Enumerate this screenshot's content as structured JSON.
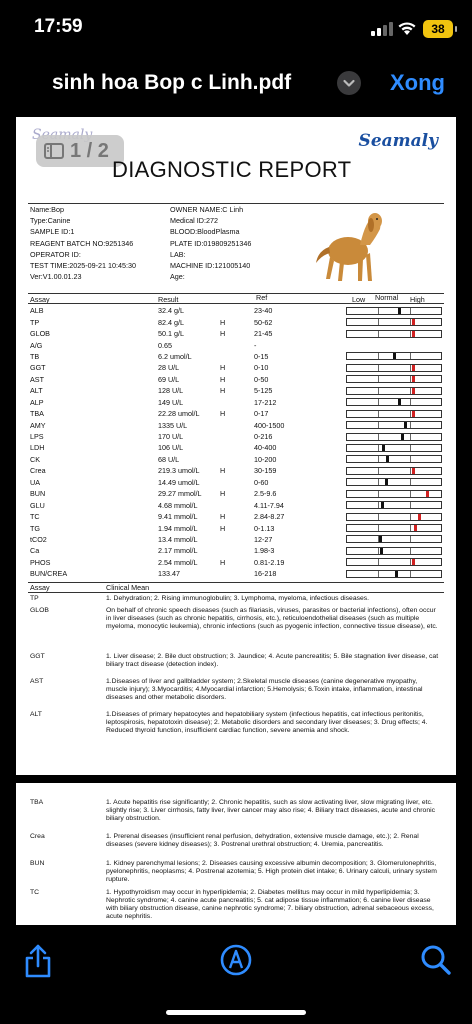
{
  "status": {
    "time": "17:59",
    "battery": "38"
  },
  "nav": {
    "title": "sinh hoa Bop c Linh.pdf",
    "done": "Xong"
  },
  "page_indicator": "1 / 2",
  "report": {
    "logo": "Seamaly",
    "title": "DIAGNOSTIC REPORT",
    "info_left": [
      "Name:Bop",
      "Type:Canine",
      "SAMPLE ID:1",
      "REAGENT BATCH NO:9251346",
      "OPERATOR ID:",
      "TEST TIME:2025-09-21 10:45:30",
      "Ver:V1.00.01.23"
    ],
    "info_right": [
      "OWNER NAME:C Linh",
      "Medical ID:272",
      "BLOOD:BloodPlasma",
      "PLATE ID:019809251346",
      "LAB:",
      "MACHINE ID:121005140",
      "Age:"
    ],
    "headers": {
      "assay": "Assay",
      "result": "Result",
      "ref": "Ref",
      "low": "Low",
      "normal": "Normal",
      "high": "High"
    },
    "rows": [
      {
        "assay": "ALB",
        "result": "32.4 g/L",
        "flag": "",
        "ref": "23-40",
        "pos": 0.55
      },
      {
        "assay": "TP",
        "result": "82.4 g/L",
        "flag": "H",
        "ref": "50-62",
        "pos": 0.7
      },
      {
        "assay": "GLOB",
        "result": "50.1 g/L",
        "flag": "H",
        "ref": "21-45",
        "pos": 0.7
      },
      {
        "assay": "A/G",
        "result": "0.65",
        "flag": "",
        "ref": "-",
        "pos": null
      },
      {
        "assay": "TB",
        "result": "6.2 umol/L",
        "flag": "",
        "ref": "0-15",
        "pos": 0.5
      },
      {
        "assay": "GGT",
        "result": "28 U/L",
        "flag": "H",
        "ref": "0-10",
        "pos": 0.7
      },
      {
        "assay": "AST",
        "result": "69 U/L",
        "flag": "H",
        "ref": "0-50",
        "pos": 0.7
      },
      {
        "assay": "ALT",
        "result": "128 U/L",
        "flag": "H",
        "ref": "5-125",
        "pos": 0.7
      },
      {
        "assay": "ALP",
        "result": "149 U/L",
        "flag": "",
        "ref": "17-212",
        "pos": 0.55
      },
      {
        "assay": "TBA",
        "result": "22.28 umol/L",
        "flag": "H",
        "ref": "0-17",
        "pos": 0.7
      },
      {
        "assay": "AMY",
        "result": "1335 U/L",
        "flag": "",
        "ref": "400-1500",
        "pos": 0.62
      },
      {
        "assay": "LPS",
        "result": "170 U/L",
        "flag": "",
        "ref": "0-216",
        "pos": 0.58
      },
      {
        "assay": "LDH",
        "result": "106 U/L",
        "flag": "",
        "ref": "40-400",
        "pos": 0.38
      },
      {
        "assay": "CK",
        "result": "68 U/L",
        "flag": "",
        "ref": "10-200",
        "pos": 0.43
      },
      {
        "assay": "Crea",
        "result": "219.3 umol/L",
        "flag": "H",
        "ref": "30-159",
        "pos": 0.7
      },
      {
        "assay": "UA",
        "result": "14.49 umol/L",
        "flag": "",
        "ref": "0-60",
        "pos": 0.42
      },
      {
        "assay": "BUN",
        "result": "29.27 mmol/L",
        "flag": "H",
        "ref": "2.5-9.6",
        "pos": 0.85
      },
      {
        "assay": "GLU",
        "result": "4.68 mmol/L",
        "flag": "",
        "ref": "4.11-7.94",
        "pos": 0.37
      },
      {
        "assay": "TC",
        "result": "9.41 mmol/L",
        "flag": "H",
        "ref": "2.84-8.27",
        "pos": 0.77
      },
      {
        "assay": "TG",
        "result": "1.94 mmol/L",
        "flag": "H",
        "ref": "0-1.13",
        "pos": 0.72
      },
      {
        "assay": "tCO2",
        "result": "13.4 mmol/L",
        "flag": "",
        "ref": "12-27",
        "pos": 0.35
      },
      {
        "assay": "Ca",
        "result": "2.17 mmol/L",
        "flag": "",
        "ref": "1.98-3",
        "pos": 0.36
      },
      {
        "assay": "PHOS",
        "result": "2.54 mmol/L",
        "flag": "H",
        "ref": "0.81-2.19",
        "pos": 0.7
      },
      {
        "assay": "BUN/CREA",
        "result": "133.47",
        "flag": "",
        "ref": "16-218",
        "pos": 0.52
      }
    ],
    "clinical_header": {
      "assay": "Assay",
      "mean": "Clinical Mean"
    },
    "clinical": [
      {
        "k": "TP",
        "v": "1. Dehydration; 2. Rising immunoglobulin; 3. Lymphoma, myeloma, infectious diseases."
      },
      {
        "k": "GLOB",
        "v": "On behalf of chronic speech diseases (such as filariasis, viruses, parasites or bacterial infections), often occur in liver diseases (such as chronic hepatitis, cirrhosis, etc.), reticuloendothelial diseases (such as multiple myeloma, monocytic leukemia), chronic infections (such as pyogenic infection, connective tissue disease), etc."
      },
      {
        "k": "GGT",
        "v": "1. Liver disease; 2. Bile duct obstruction; 3. Jaundice; 4. Acute pancreatitis; 5. Bile stagnation liver disease, cat biliary tract disease (detection index)."
      },
      {
        "k": "AST",
        "v": "1.Diseases of liver and gallbladder system; 2.Skeletal muscle diseases (canine degenerative myopathy, muscle injury); 3.Myocarditis; 4.Myocardial infarction; 5.Hemolysis; 6.Toxin intake, inflammation, intestinal diseases and other metabolic disorders."
      },
      {
        "k": "ALT",
        "v": "1.Diseases of primary hepatocytes and hepatobiliary system (infectious hepatitis, cat infectious peritonitis, leptospirosis, hepatotoxin disease); 2. Metabolic disorders and secondary liver diseases; 3. Drug effects; 4. Reduced thyroid function, insufficient cardiac function, severe anemia and shock."
      }
    ],
    "clinical_page2": [
      {
        "k": "TBA",
        "v": "1. Acute hepatitis rise significantly; 2. Chronic hepatitis, such as slow activating liver, slow migrating liver, etc. slightly rise; 3. Liver cirrhosis, fatty liver, liver cancer may also rise; 4. Biliary tract diseases, acute and chronic biliary obstruction."
      },
      {
        "k": "Crea",
        "v": "1. Prerenal diseases (insufficient renal perfusion, dehydration, extensive muscle damage, etc.); 2. Renal diseases (severe kidney diseases); 3. Postrenal urethral obstruction; 4. Uremia, pancreatitis."
      },
      {
        "k": "BUN",
        "v": "1. Kidney parenchymal lesions; 2. Diseases causing excessive albumin decomposition; 3. Glomerulonephritis, pyelonephritis, neoplasms; 4. Postrenal azotemia; 5. High protein diet intake; 6. Urinary calculi, urinary system rupture."
      },
      {
        "k": "TC",
        "v": "1. Hypothyroidism may occur in hyperlipidemia; 2. Diabetes mellitus may occur in mild hyperlipidemia; 3. Nephrotic syndrome; 4. canine acute pancreatitis; 5. cat adipose tissue inflammation; 6. canine liver disease with biliary obstruction disease, canine nephrotic syndrome; 7. biliary obstruction, adrenal sebaceous excess, acute nephritis."
      }
    ]
  },
  "toolbar": {
    "share_icon": "share-icon",
    "markup_icon": "markup-icon",
    "search_icon": "search-icon"
  },
  "colors": {
    "accent": "#2f8cff",
    "flag": "#d22222",
    "battery": "#f1c40f"
  }
}
